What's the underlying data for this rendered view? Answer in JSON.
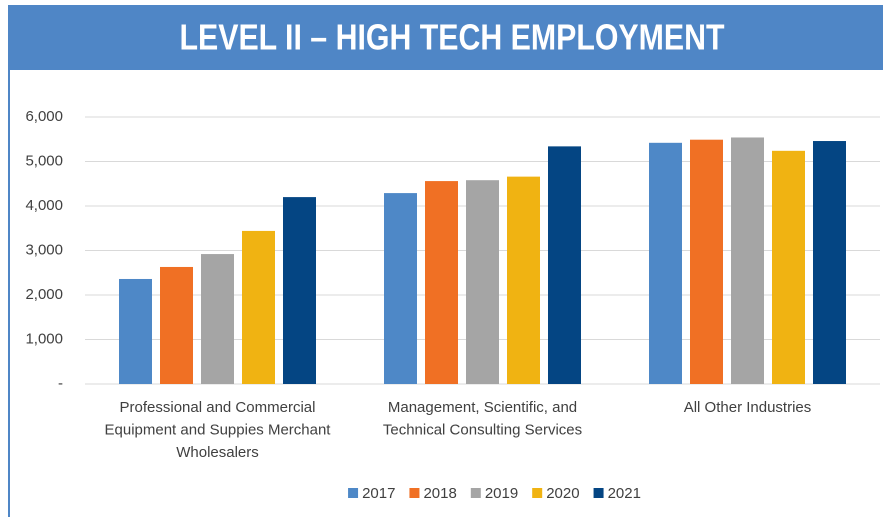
{
  "chart_data": {
    "type": "bar",
    "title": "LEVEL II – HIGH TECH EMPLOYMENT",
    "categories": [
      "Professional and Commercial Equipment and Suppies Merchant Wholesalers",
      "Management, Scientific, and Technical Consulting Services",
      "All Other Industries"
    ],
    "series": [
      {
        "name": "2017",
        "color": "#4e88c7",
        "values": [
          2360,
          4290,
          5420
        ]
      },
      {
        "name": "2018",
        "color": "#f07024",
        "values": [
          2630,
          4560,
          5490
        ]
      },
      {
        "name": "2019",
        "color": "#a5a5a5",
        "values": [
          2920,
          4580,
          5540
        ]
      },
      {
        "name": "2020",
        "color": "#f0b312",
        "values": [
          3440,
          4660,
          5240
        ]
      },
      {
        "name": "2021",
        "color": "#044583",
        "values": [
          4200,
          5340,
          5460
        ]
      }
    ],
    "ylim": [
      0,
      6000
    ],
    "yticks": [
      {
        "value": 0,
        "label": "-"
      },
      {
        "value": 1000,
        "label": "1,000"
      },
      {
        "value": 2000,
        "label": "2,000"
      },
      {
        "value": 3000,
        "label": "3,000"
      },
      {
        "value": 4000,
        "label": "4,000"
      },
      {
        "value": 5000,
        "label": "5,000"
      },
      {
        "value": 6000,
        "label": "6,000"
      }
    ],
    "grid": true,
    "legend": "bottom"
  }
}
